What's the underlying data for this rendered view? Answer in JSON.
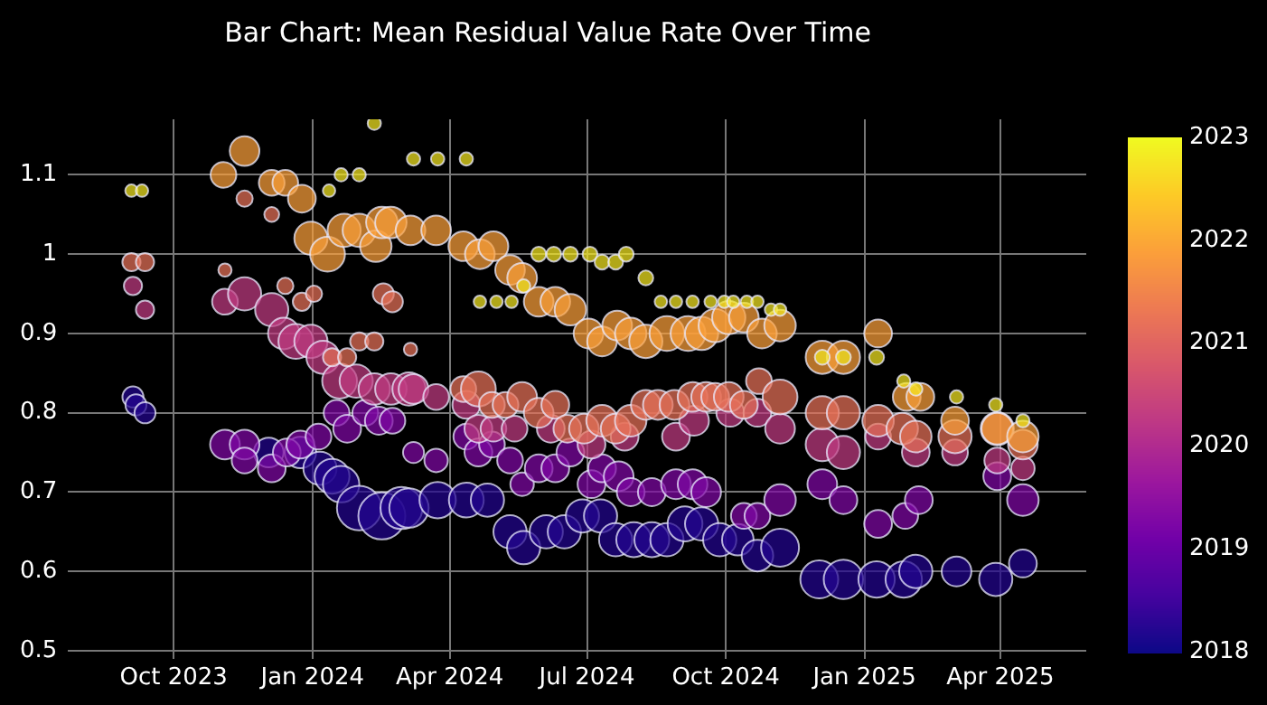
{
  "chart_data": {
    "type": "bubble",
    "title": "Bar Chart: Mean Residual Value Rate Over Time",
    "clabel": null,
    "xlim": [
      "2023-07-23",
      "2025-05-28"
    ],
    "xticks": [
      {
        "value": "2023-10-01",
        "label": "Oct 2023"
      },
      {
        "value": "2024-01-01",
        "label": "Jan 2024"
      },
      {
        "value": "2024-04-01",
        "label": "Apr 2024"
      },
      {
        "value": "2024-07-01",
        "label": "Jul 2024"
      },
      {
        "value": "2024-10-01",
        "label": "Oct 2024"
      },
      {
        "value": "2025-01-01",
        "label": "Jan 2025"
      },
      {
        "value": "2025-04-01",
        "label": "Apr 2025"
      }
    ],
    "ylim": [
      0.49,
      1.17
    ],
    "yticks": [
      0.5,
      0.6,
      0.7,
      0.8,
      0.9,
      1,
      1.1
    ],
    "clim": [
      2018,
      2023
    ],
    "cticks": [
      2018,
      2019,
      2020,
      2021,
      2022,
      2023
    ],
    "grid": true,
    "series": [
      {
        "x": [
          "2023-09-03",
          "2023-09-10",
          "2024-01-12",
          "2024-01-20",
          "2024-02-01",
          "2024-02-11",
          "2024-03-08",
          "2024-03-24",
          "2024-04-12",
          "2024-04-21",
          "2024-05-02",
          "2024-05-12",
          "2024-05-20",
          "2024-05-30",
          "2024-06-09",
          "2024-06-20",
          "2024-07-03",
          "2024-07-11",
          "2024-07-20",
          "2024-07-27",
          "2024-08-09",
          "2024-08-19",
          "2024-08-29",
          "2024-09-09",
          "2024-09-21",
          "2024-09-30",
          "2024-10-06",
          "2024-10-15",
          "2024-10-22",
          "2024-10-31",
          "2024-11-06",
          "2024-12-04",
          "2024-12-18",
          "2025-01-09",
          "2025-01-27",
          "2025-02-04",
          "2025-03-03",
          "2025-03-29",
          "2025-04-16"
        ],
        "values": [
          1.08,
          1.08,
          1.08,
          1.1,
          1.1,
          1.165,
          1.12,
          1.12,
          1.12,
          0.94,
          0.94,
          0.94,
          0.96,
          1.0,
          1.0,
          1.0,
          1.0,
          0.99,
          0.99,
          1.0,
          0.97,
          0.94,
          0.94,
          0.94,
          0.94,
          0.94,
          0.94,
          0.94,
          0.94,
          0.93,
          0.93,
          0.87,
          0.87,
          0.87,
          0.84,
          0.83,
          0.82,
          0.81,
          0.79
        ],
        "sizes": [
          0.07,
          0.07,
          0.07,
          0.08,
          0.08,
          0.08,
          0.08,
          0.08,
          0.08,
          0.07,
          0.07,
          0.07,
          0.08,
          0.1,
          0.1,
          0.1,
          0.1,
          0.1,
          0.1,
          0.1,
          0.1,
          0.07,
          0.07,
          0.07,
          0.07,
          0.07,
          0.07,
          0.07,
          0.07,
          0.07,
          0.07,
          0.1,
          0.1,
          0.1,
          0.08,
          0.08,
          0.08,
          0.08,
          0.08
        ],
        "cvalues": [
          2022.8,
          2022.8,
          2022.8,
          2022.8,
          2022.8,
          2022.8,
          2022.8,
          2022.8,
          2022.8,
          2022.8,
          2022.8,
          2022.8,
          2022.8,
          2022.8,
          2022.8,
          2022.8,
          2022.8,
          2022.8,
          2022.8,
          2022.8,
          2022.8,
          2022.8,
          2022.8,
          2022.8,
          2022.8,
          2022.8,
          2022.8,
          2022.8,
          2022.8,
          2022.8,
          2022.8,
          2022.8,
          2022.8,
          2022.8,
          2022.8,
          2022.8,
          2022.8,
          2022.8,
          2022.8
        ]
      },
      {
        "x": [
          "2023-11-03",
          "2023-11-17",
          "2023-12-05",
          "2023-12-14",
          "2023-12-25",
          "2023-12-31",
          "2024-01-11",
          "2024-01-22",
          "2024-02-01",
          "2024-02-12",
          "2024-02-16",
          "2024-02-22",
          "2024-03-06",
          "2024-03-23",
          "2024-04-10",
          "2024-04-21",
          "2024-04-30",
          "2024-05-11",
          "2024-05-19",
          "2024-05-30",
          "2024-06-10",
          "2024-06-20",
          "2024-07-02",
          "2024-07-11",
          "2024-07-21",
          "2024-07-30",
          "2024-08-09",
          "2024-08-23",
          "2024-09-06",
          "2024-09-15",
          "2024-09-24",
          "2024-10-03",
          "2024-10-13",
          "2024-10-25",
          "2024-11-06",
          "2024-12-04",
          "2024-12-18",
          "2025-01-10",
          "2025-01-29",
          "2025-02-07",
          "2025-03-02",
          "2025-03-30",
          "2025-04-16"
        ],
        "values": [
          1.1,
          1.13,
          1.09,
          1.09,
          1.07,
          1.02,
          1.0,
          1.03,
          1.03,
          1.01,
          1.04,
          1.04,
          1.03,
          1.03,
          1.01,
          1.0,
          1.01,
          0.98,
          0.97,
          0.94,
          0.94,
          0.93,
          0.9,
          0.89,
          0.91,
          0.9,
          0.89,
          0.9,
          0.9,
          0.9,
          0.91,
          0.92,
          0.92,
          0.9,
          0.91,
          0.87,
          0.87,
          0.9,
          0.82,
          0.82,
          0.79,
          0.78,
          0.77
        ],
        "sizes": [
          0.3,
          0.4,
          0.3,
          0.3,
          0.35,
          0.5,
          0.55,
          0.5,
          0.5,
          0.45,
          0.45,
          0.45,
          0.4,
          0.4,
          0.4,
          0.4,
          0.4,
          0.4,
          0.4,
          0.4,
          0.4,
          0.45,
          0.4,
          0.4,
          0.4,
          0.45,
          0.5,
          0.55,
          0.55,
          0.5,
          0.5,
          0.5,
          0.4,
          0.4,
          0.45,
          0.5,
          0.5,
          0.35,
          0.35,
          0.35,
          0.35,
          0.45,
          0.45
        ],
        "cvalues": [
          2021.9,
          2021.9,
          2021.9,
          2021.9,
          2021.9,
          2021.9,
          2021.9,
          2021.9,
          2021.9,
          2021.9,
          2021.9,
          2021.9,
          2021.9,
          2021.9,
          2021.9,
          2021.9,
          2021.9,
          2021.9,
          2021.9,
          2021.9,
          2021.9,
          2021.9,
          2021.9,
          2021.9,
          2021.9,
          2021.9,
          2021.9,
          2021.9,
          2021.9,
          2021.9,
          2021.9,
          2021.9,
          2021.9,
          2021.9,
          2021.9,
          2021.9,
          2021.9,
          2021.9,
          2021.9,
          2021.9,
          2021.9,
          2021.9,
          2021.9
        ]
      },
      {
        "x": [
          "2023-09-03",
          "2023-09-12",
          "2023-11-04",
          "2023-11-17",
          "2023-12-05",
          "2023-12-14",
          "2023-12-25",
          "2024-01-02",
          "2024-01-14",
          "2024-01-24",
          "2024-02-01",
          "2024-02-11",
          "2024-02-17",
          "2024-02-23",
          "2024-03-06",
          "2024-04-10",
          "2024-04-20",
          "2024-04-29",
          "2024-05-08",
          "2024-05-19",
          "2024-05-30",
          "2024-06-10",
          "2024-06-18",
          "2024-06-29",
          "2024-07-11",
          "2024-07-20",
          "2024-07-30",
          "2024-08-09",
          "2024-08-17",
          "2024-08-28",
          "2024-09-09",
          "2024-09-18",
          "2024-09-24",
          "2024-10-03",
          "2024-10-13",
          "2024-10-23",
          "2024-11-06",
          "2024-12-04",
          "2024-12-18",
          "2025-01-10",
          "2025-01-26",
          "2025-02-04",
          "2025-03-02",
          "2025-03-30",
          "2025-04-16"
        ],
        "values": [
          0.99,
          0.99,
          0.98,
          1.07,
          1.05,
          0.96,
          0.94,
          0.95,
          0.87,
          0.87,
          0.89,
          0.89,
          0.95,
          0.94,
          0.88,
          0.83,
          0.83,
          0.81,
          0.81,
          0.82,
          0.8,
          0.81,
          0.78,
          0.78,
          0.79,
          0.78,
          0.79,
          0.81,
          0.81,
          0.81,
          0.82,
          0.82,
          0.82,
          0.82,
          0.81,
          0.84,
          0.82,
          0.8,
          0.8,
          0.79,
          0.78,
          0.77,
          0.77,
          0.78,
          0.76
        ],
        "sizes": [
          0.15,
          0.15,
          0.08,
          0.12,
          0.1,
          0.12,
          0.15,
          0.12,
          0.15,
          0.15,
          0.15,
          0.15,
          0.2,
          0.2,
          0.08,
          0.3,
          0.55,
          0.3,
          0.3,
          0.4,
          0.4,
          0.35,
          0.35,
          0.4,
          0.45,
          0.4,
          0.45,
          0.4,
          0.4,
          0.4,
          0.4,
          0.4,
          0.35,
          0.4,
          0.35,
          0.3,
          0.55,
          0.5,
          0.5,
          0.45,
          0.45,
          0.45,
          0.5,
          0.5,
          0.4
        ],
        "cvalues": [
          2021.2,
          2021.2,
          2021.2,
          2021.2,
          2021.2,
          2021.2,
          2021.2,
          2021.2,
          2021.2,
          2021.2,
          2021.2,
          2021.2,
          2021.2,
          2021.2,
          2021.2,
          2021.2,
          2021.2,
          2021.2,
          2021.2,
          2021.2,
          2021.2,
          2021.2,
          2021.2,
          2021.2,
          2021.2,
          2021.2,
          2021.2,
          2021.2,
          2021.2,
          2021.2,
          2021.2,
          2021.2,
          2021.2,
          2021.2,
          2021.2,
          2021.2,
          2021.2,
          2021.2,
          2021.2,
          2021.2,
          2021.2,
          2021.2,
          2021.2,
          2021.2,
          2021.2
        ]
      },
      {
        "x": [
          "2023-09-04",
          "2023-09-12",
          "2023-11-04",
          "2023-11-17",
          "2023-12-05",
          "2023-12-13",
          "2023-12-21",
          "2023-12-31",
          "2024-01-08",
          "2024-01-19",
          "2024-01-30",
          "2024-02-11",
          "2024-02-22",
          "2024-03-05",
          "2024-03-08",
          "2024-03-23",
          "2024-04-12",
          "2024-04-20",
          "2024-04-30",
          "2024-05-14",
          "2024-06-07",
          "2024-07-04",
          "2024-07-26",
          "2024-08-29",
          "2024-09-10",
          "2024-10-04",
          "2024-10-22",
          "2024-11-06",
          "2024-12-04",
          "2024-12-18",
          "2025-01-10",
          "2025-02-04",
          "2025-03-02",
          "2025-03-30",
          "2025-04-16"
        ],
        "values": [
          0.96,
          0.93,
          0.94,
          0.95,
          0.93,
          0.9,
          0.89,
          0.89,
          0.87,
          0.84,
          0.84,
          0.83,
          0.83,
          0.83,
          0.83,
          0.82,
          0.81,
          0.78,
          0.78,
          0.78,
          0.78,
          0.76,
          0.77,
          0.77,
          0.79,
          0.8,
          0.8,
          0.78,
          0.76,
          0.75,
          0.77,
          0.75,
          0.75,
          0.74,
          0.73
        ],
        "sizes": [
          0.15,
          0.15,
          0.3,
          0.5,
          0.5,
          0.45,
          0.55,
          0.5,
          0.5,
          0.55,
          0.5,
          0.45,
          0.45,
          0.5,
          0.4,
          0.3,
          0.35,
          0.35,
          0.3,
          0.3,
          0.35,
          0.35,
          0.35,
          0.35,
          0.4,
          0.35,
          0.35,
          0.4,
          0.5,
          0.5,
          0.3,
          0.35,
          0.3,
          0.3,
          0.25
        ],
        "cvalues": [
          2020.3,
          2020.3,
          2020.3,
          2020.3,
          2020.3,
          2020.3,
          2020.3,
          2020.3,
          2020.3,
          2020.3,
          2020.3,
          2020.3,
          2020.3,
          2020.3,
          2020.3,
          2020.3,
          2020.3,
          2020.3,
          2020.3,
          2020.3,
          2020.3,
          2020.3,
          2020.3,
          2020.3,
          2020.3,
          2020.3,
          2020.3,
          2020.3,
          2020.3,
          2020.3,
          2020.3,
          2020.3,
          2020.3,
          2020.3,
          2020.3
        ]
      },
      {
        "x": [
          "2023-11-04",
          "2023-11-17",
          "2023-11-17",
          "2023-12-05",
          "2023-12-15",
          "2023-12-24",
          "2024-01-05",
          "2024-01-17",
          "2024-01-24",
          "2024-02-05",
          "2024-02-14",
          "2024-02-23",
          "2024-03-08",
          "2024-03-23",
          "2024-04-12",
          "2024-04-20",
          "2024-04-29",
          "2024-05-11",
          "2024-05-19",
          "2024-05-30",
          "2024-06-10",
          "2024-06-20",
          "2024-07-04",
          "2024-07-11",
          "2024-07-22",
          "2024-07-30",
          "2024-08-13",
          "2024-08-29",
          "2024-09-09",
          "2024-09-18",
          "2024-10-13",
          "2024-10-22",
          "2024-11-06",
          "2024-12-04",
          "2024-12-18",
          "2025-01-10",
          "2025-01-28",
          "2025-02-06",
          "2025-03-30",
          "2025-04-16"
        ],
        "values": [
          0.76,
          0.76,
          0.74,
          0.73,
          0.75,
          0.76,
          0.77,
          0.8,
          0.78,
          0.8,
          0.79,
          0.79,
          0.75,
          0.74,
          0.77,
          0.75,
          0.76,
          0.74,
          0.71,
          0.73,
          0.73,
          0.75,
          0.71,
          0.73,
          0.72,
          0.7,
          0.7,
          0.71,
          0.71,
          0.7,
          0.67,
          0.67,
          0.69,
          0.71,
          0.69,
          0.66,
          0.67,
          0.69,
          0.72,
          0.69
        ],
        "sizes": [
          0.4,
          0.4,
          0.3,
          0.35,
          0.35,
          0.35,
          0.3,
          0.3,
          0.35,
          0.3,
          0.35,
          0.3,
          0.2,
          0.25,
          0.3,
          0.35,
          0.3,
          0.3,
          0.25,
          0.35,
          0.35,
          0.35,
          0.35,
          0.35,
          0.4,
          0.35,
          0.35,
          0.4,
          0.4,
          0.4,
          0.3,
          0.3,
          0.45,
          0.4,
          0.35,
          0.35,
          0.3,
          0.35,
          0.35,
          0.45
        ],
        "cvalues": [
          2019.3,
          2019.3,
          2019.3,
          2019.3,
          2019.3,
          2019.3,
          2019.3,
          2019.3,
          2019.3,
          2019.3,
          2019.3,
          2019.3,
          2019.3,
          2019.3,
          2019.3,
          2019.3,
          2019.3,
          2019.3,
          2019.3,
          2019.3,
          2019.3,
          2019.3,
          2019.3,
          2019.3,
          2019.3,
          2019.3,
          2019.3,
          2019.3,
          2019.3,
          2019.3,
          2019.3,
          2019.3,
          2019.3,
          2019.3,
          2019.3,
          2019.3,
          2019.3,
          2019.3,
          2019.3,
          2019.3
        ]
      },
      {
        "x": [
          "2023-09-04",
          "2023-09-06",
          "2023-09-12",
          "2023-12-03",
          "2023-12-24",
          "2024-01-06",
          "2024-01-14",
          "2024-01-20",
          "2024-02-01",
          "2024-02-16",
          "2024-02-29",
          "2024-03-05",
          "2024-03-24",
          "2024-04-12",
          "2024-04-26",
          "2024-05-11",
          "2024-05-20",
          "2024-06-04",
          "2024-06-16",
          "2024-06-28",
          "2024-07-10",
          "2024-07-20",
          "2024-08-01",
          "2024-08-13",
          "2024-08-23",
          "2024-09-04",
          "2024-09-15",
          "2024-09-27",
          "2024-10-09",
          "2024-10-22",
          "2024-11-06",
          "2024-12-02",
          "2024-12-18",
          "2025-01-09",
          "2025-01-27",
          "2025-02-04",
          "2025-03-03",
          "2025-03-29",
          "2025-04-16"
        ],
        "values": [
          0.82,
          0.81,
          0.8,
          0.75,
          0.75,
          0.73,
          0.72,
          0.71,
          0.68,
          0.67,
          0.68,
          0.68,
          0.69,
          0.69,
          0.69,
          0.65,
          0.63,
          0.65,
          0.65,
          0.67,
          0.67,
          0.64,
          0.64,
          0.64,
          0.64,
          0.66,
          0.66,
          0.64,
          0.64,
          0.62,
          0.63,
          0.59,
          0.59,
          0.59,
          0.59,
          0.6,
          0.6,
          0.59,
          0.61
        ],
        "sizes": [
          0.2,
          0.2,
          0.2,
          0.4,
          0.45,
          0.5,
          0.55,
          0.6,
          0.9,
          1,
          0.8,
          0.7,
          0.6,
          0.55,
          0.5,
          0.5,
          0.5,
          0.5,
          0.5,
          0.5,
          0.5,
          0.5,
          0.55,
          0.55,
          0.5,
          0.55,
          0.5,
          0.5,
          0.45,
          0.45,
          0.65,
          0.65,
          0.7,
          0.6,
          0.6,
          0.5,
          0.4,
          0.5,
          0.35
        ],
        "cvalues": [
          2018.2,
          2018.2,
          2018.2,
          2018.2,
          2018.2,
          2018.2,
          2018.2,
          2018.2,
          2018.2,
          2018.2,
          2018.2,
          2018.2,
          2018.2,
          2018.2,
          2018.2,
          2018.2,
          2018.2,
          2018.2,
          2018.2,
          2018.2,
          2018.2,
          2018.2,
          2018.2,
          2018.2,
          2018.2,
          2018.2,
          2018.2,
          2018.2,
          2018.2,
          2018.2,
          2018.2,
          2018.2,
          2018.2,
          2018.2,
          2018.2,
          2018.2,
          2018.2,
          2018.2,
          2018.2
        ]
      }
    ]
  }
}
